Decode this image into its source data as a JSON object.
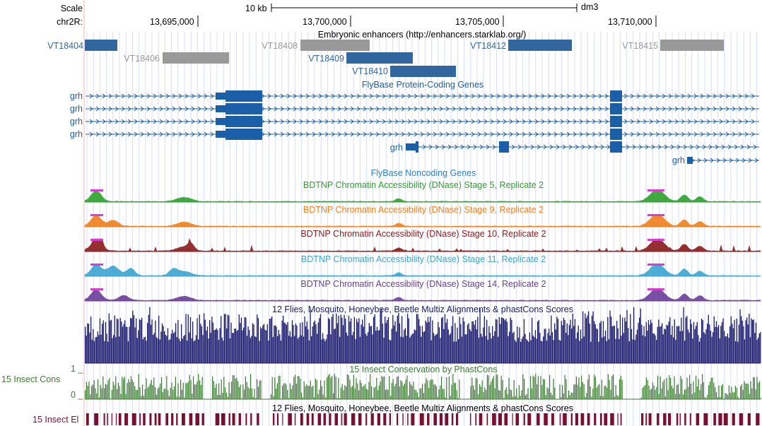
{
  "ruler": {
    "scale_label": "Scale",
    "scale_bar_text": "10 kb",
    "assembly": "dm3",
    "chrom_label": "chr2R:",
    "positions": [
      "13,695,000",
      "13,700,000",
      "13,705,000",
      "13,710,000"
    ]
  },
  "tracks": {
    "enhancers": {
      "title": "Embryonic enhancers (http://enhancers.starklab.org/)",
      "items": [
        {
          "name": "VT18404",
          "color": "#31679e"
        },
        {
          "name": "VT18406",
          "color": "#999999"
        },
        {
          "name": "VT18408",
          "color": "#999999"
        },
        {
          "name": "VT18409",
          "color": "#31679e"
        },
        {
          "name": "VT18410",
          "color": "#31679e"
        },
        {
          "name": "VT18412",
          "color": "#31679e"
        },
        {
          "name": "VT18415",
          "color": "#999999"
        }
      ]
    },
    "genes": {
      "title": "FlyBase Protein-Coding Genes",
      "labels": [
        "grh",
        "grh",
        "grh",
        "grh",
        "grh",
        "grh"
      ],
      "color": "#1a5fa8"
    },
    "noncoding": {
      "title": "FlyBase Noncoding Genes",
      "color": "#2f7fc1"
    },
    "dnase": [
      {
        "title": "BDTNP Chromatin Accessibility (DNase) Stage 5, Replicate 2",
        "color": "#2ca02c"
      },
      {
        "title": "BDTNP Chromatin Accessibility (DNase) Stage 9, Replicate 2",
        "color": "#f07f1d"
      },
      {
        "title": "BDTNP Chromatin Accessibility (DNase) Stage 10, Replicate 2",
        "color": "#8b1a1a"
      },
      {
        "title": "BDTNP Chromatin Accessibility (DNase) Stage 11, Replicate 2",
        "color": "#3aa5d0"
      },
      {
        "title": "BDTNP Chromatin Accessibility (DNase) Stage 14, Replicate 2",
        "color": "#6a3d9a"
      }
    ],
    "multiz": {
      "title": "12 Flies, Mosquito, Honeybee, Beetle Multiz Alignments & phastCons Scores",
      "color": "#1a1a6e"
    },
    "phastcons": {
      "side_label": "15 Insect Cons",
      "title": "15 Insect Conservation by PhastCons",
      "axis_max": "1 _",
      "axis_min": "0 _",
      "color": "#3d7a32"
    },
    "elements": {
      "side_label": "15 Insect El",
      "title": "12 Flies, Mosquito, Honeybee, Beetle Multiz Alignments & phastCons Scores",
      "color": "#7a1030"
    }
  }
}
